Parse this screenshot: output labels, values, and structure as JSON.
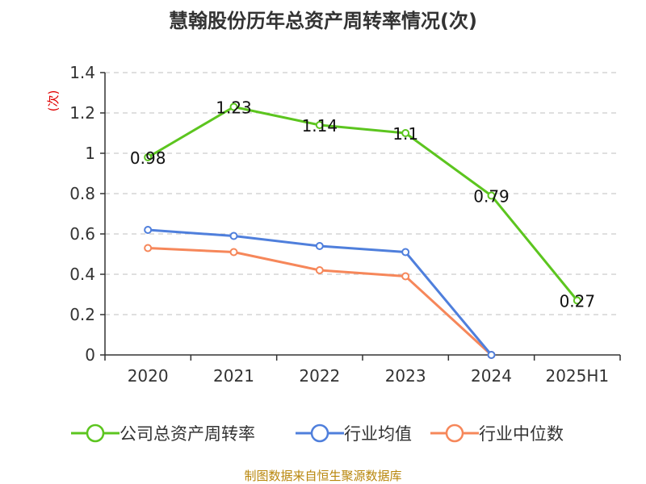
{
  "chart_data": {
    "type": "line",
    "title": "慧翰股份历年总资产周转率情况(次)",
    "ylabel": "(次)",
    "xlabel": "",
    "categories": [
      "2020",
      "2021",
      "2022",
      "2023",
      "2024",
      "2025H1"
    ],
    "ylim": [
      0,
      1.4
    ],
    "yticks": [
      "0",
      "0.2",
      "0.4",
      "0.6",
      "0.8",
      "1",
      "1.2",
      "1.4"
    ],
    "grid": true,
    "legend_position": "bottom",
    "series": [
      {
        "name": "公司总资产周转率",
        "color": "#5cc51f",
        "values": [
          0.98,
          1.23,
          1.14,
          1.1,
          0.79,
          0.27
        ],
        "labels": [
          "0.98",
          "1.23",
          "1.14",
          "1.1",
          "0.79",
          "0.27"
        ]
      },
      {
        "name": "行业均值",
        "color": "#4f7fdc",
        "values": [
          0.62,
          0.59,
          0.54,
          0.51,
          0,
          null
        ]
      },
      {
        "name": "行业中位数",
        "color": "#f6875a",
        "values": [
          0.53,
          0.51,
          0.42,
          0.39,
          0,
          null
        ]
      }
    ],
    "source": "制图数据来自恒生聚源数据库"
  }
}
